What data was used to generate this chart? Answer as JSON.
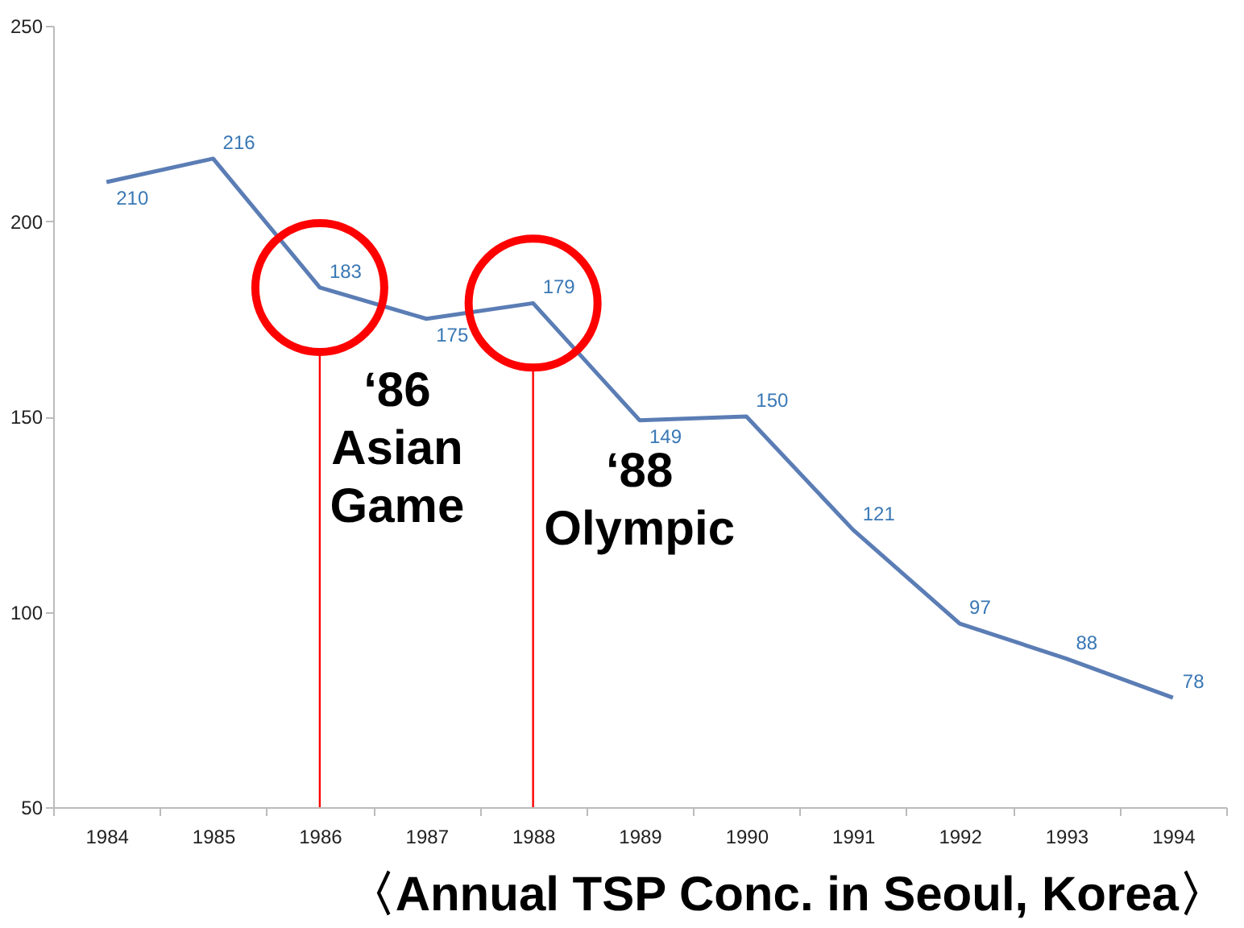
{
  "chart_data": {
    "type": "line",
    "title": "〈Annual TSP Conc. in Seoul, Korea〉",
    "categories": [
      "1984",
      "1985",
      "1986",
      "1987",
      "1988",
      "1989",
      "1990",
      "1991",
      "1992",
      "1993",
      "1994"
    ],
    "series": [
      {
        "color": "#5b7db5",
        "values": [
          210,
          216,
          183,
          175,
          179,
          149,
          150,
          121,
          97,
          88,
          78
        ]
      }
    ],
    "data_labels": true,
    "ylim": [
      50,
      250
    ],
    "yticks": [
      50,
      100,
      150,
      200,
      250
    ],
    "grid": false,
    "legend": false,
    "marker": "none",
    "line_style": "solid",
    "ref_lines": [
      {
        "axis": "x",
        "value": "1986",
        "label": "‘86\nAsian\nGame",
        "color": "#ff0000"
      },
      {
        "axis": "x",
        "value": "1988",
        "label": "‘88\nOlympic",
        "color": "#ff0000"
      }
    ]
  }
}
